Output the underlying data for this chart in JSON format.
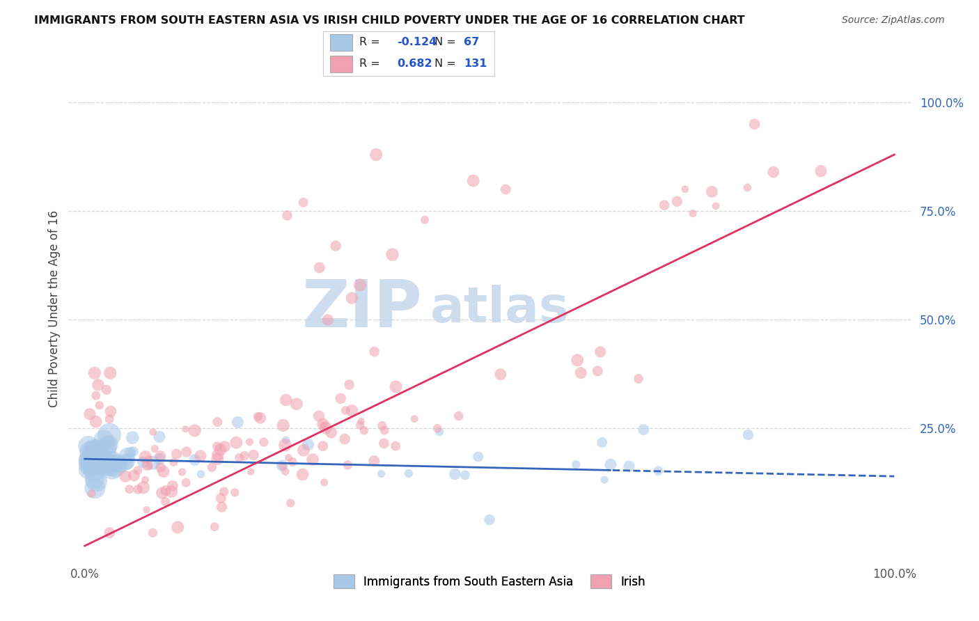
{
  "title": "IMMIGRANTS FROM SOUTH EASTERN ASIA VS IRISH CHILD POVERTY UNDER THE AGE OF 16 CORRELATION CHART",
  "source": "Source: ZipAtlas.com",
  "ylabel": "Child Poverty Under the Age of 16",
  "legend_label1": "Immigrants from South Eastern Asia",
  "legend_label2": "Irish",
  "R1": -0.124,
  "N1": 67,
  "R2": 0.682,
  "N2": 131,
  "blue_scatter_color": "#a8c8e8",
  "blue_line_color": "#3366bb",
  "pink_scatter_color": "#f0a0b0",
  "pink_line_color": "#e03060",
  "background_color": "#ffffff",
  "grid_color": "#cccccc",
  "watermark_color": "#c5d8ec",
  "title_color": "#111111",
  "source_color": "#555555",
  "ylabel_color": "#444444",
  "xtick_color": "#555555",
  "right_tick_color": "#3366bb",
  "right_ytick_positions": [
    0.25,
    0.5,
    0.75,
    1.0
  ],
  "right_ytick_labels": [
    "25.0%",
    "50.0%",
    "75.0%",
    "100.0%"
  ],
  "xlim": [
    -0.02,
    1.02
  ],
  "ylim": [
    -0.05,
    1.1
  ]
}
